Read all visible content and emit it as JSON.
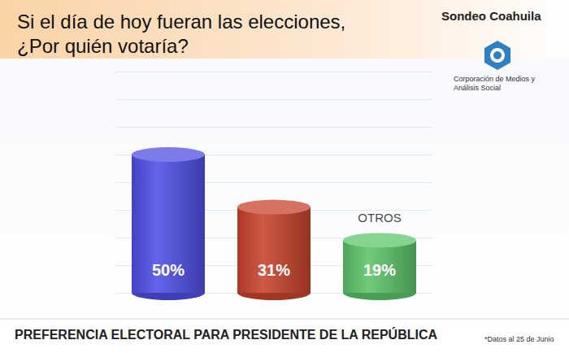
{
  "chart_data": {
    "type": "bar",
    "title": "Si el día de hoy fueran las elecciones, ¿Por quién votaría?",
    "subtitle": "Sondeo Coahuila",
    "logo_text": "Corporación de Medios y Análisis Social",
    "footer": "PREFERENCIA ELECTORAL PARA PRESIDENTE DE LA REPÚBLICA",
    "note": "*Datos al 25 de Junio",
    "categories": [
      null,
      null,
      "OTROS"
    ],
    "values": [
      50,
      31,
      19
    ],
    "value_labels": [
      "50%",
      "31%",
      "19%"
    ],
    "colors": [
      "#4f4fe6",
      "#c8432c",
      "#5cc569"
    ],
    "ylim": [
      0,
      80
    ],
    "yticks": [
      0,
      10,
      20,
      30,
      40,
      50,
      60,
      70,
      80
    ],
    "grid": true,
    "tick_labels": false,
    "data_labels": true
  }
}
